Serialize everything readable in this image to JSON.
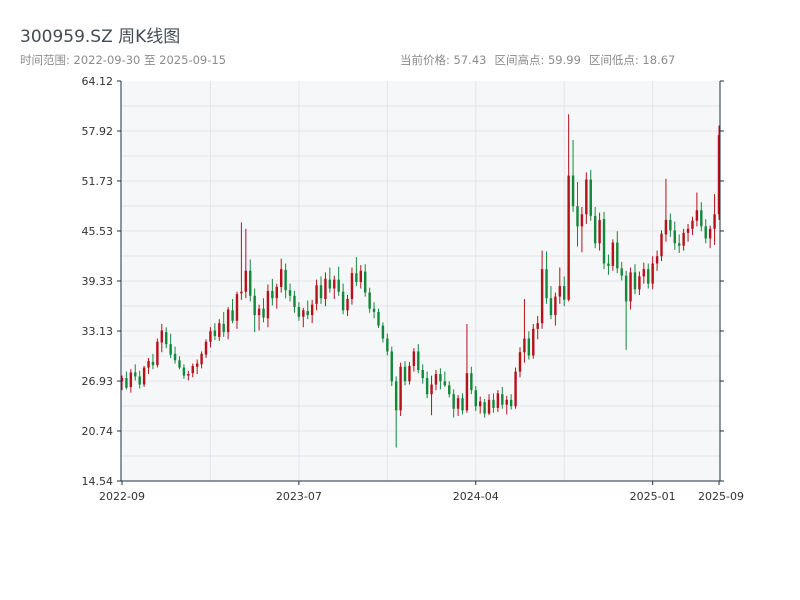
{
  "header": {
    "title": "300959.SZ 周K线图",
    "range_label": "时间范围: 2022-09-30 至 2025-09-15",
    "current_price_label": "当前价格: 57.43",
    "high_label": "区间高点: 59.99",
    "low_label": "区间低点: 18.67"
  },
  "chart_data": {
    "type": "candlestick",
    "ylim": [
      14.54,
      64.12
    ],
    "y_ticks": [
      14.54,
      20.74,
      26.93,
      33.13,
      39.33,
      45.53,
      51.73,
      57.92,
      64.12
    ],
    "y_tick_labels": [
      "14.54",
      "20.74",
      "26.93",
      "33.13",
      "39.33",
      "45.53",
      "51.73",
      "57.92",
      "64.12"
    ],
    "x_tick_labels": [
      "2022-09",
      "2023-07",
      "2024-04",
      "2025-01",
      "2025-09"
    ],
    "grid": true,
    "colors": {
      "up": "#b5121b",
      "down": "#14883a",
      "grid": "#e3e6ea",
      "plot_bg": "#f6f7f9",
      "axis": "#222f3e"
    },
    "ohlc": [
      [
        26.9,
        27.6,
        25.8,
        27.3
      ],
      [
        27.3,
        28.1,
        25.9,
        26.1
      ],
      [
        26.2,
        28.4,
        25.5,
        28.0
      ],
      [
        28.0,
        29.0,
        27.0,
        27.5
      ],
      [
        27.5,
        28.2,
        26.0,
        26.5
      ],
      [
        26.5,
        28.8,
        26.2,
        28.6
      ],
      [
        28.6,
        29.8,
        27.8,
        29.4
      ],
      [
        29.3,
        30.3,
        28.4,
        28.9
      ],
      [
        28.9,
        32.2,
        28.6,
        31.8
      ],
      [
        31.7,
        34.0,
        30.5,
        33.2
      ],
      [
        33.0,
        33.6,
        31.0,
        31.5
      ],
      [
        31.5,
        32.8,
        29.8,
        30.2
      ],
      [
        30.3,
        31.2,
        29.1,
        29.5
      ],
      [
        29.5,
        30.0,
        28.4,
        28.6
      ],
      [
        28.6,
        29.0,
        27.2,
        27.6
      ],
      [
        27.6,
        28.2,
        27.0,
        27.8
      ],
      [
        27.9,
        29.1,
        27.4,
        28.8
      ],
      [
        28.7,
        29.6,
        27.8,
        29.1
      ],
      [
        29.0,
        30.6,
        28.5,
        30.3
      ],
      [
        30.2,
        32.1,
        29.8,
        31.8
      ],
      [
        31.8,
        33.6,
        31.1,
        33.1
      ],
      [
        33.2,
        34.1,
        32.0,
        32.5
      ],
      [
        32.4,
        34.6,
        31.9,
        34.1
      ],
      [
        34.0,
        35.5,
        32.4,
        33.0
      ],
      [
        33.0,
        36.1,
        32.1,
        35.8
      ],
      [
        35.7,
        37.1,
        34.1,
        34.4
      ],
      [
        34.4,
        38.0,
        33.4,
        37.7
      ],
      [
        37.8,
        46.6,
        37.0,
        38.0
      ],
      [
        38.0,
        45.8,
        37.2,
        40.6
      ],
      [
        40.6,
        42.0,
        36.8,
        37.5
      ],
      [
        37.5,
        38.4,
        33.0,
        35.1
      ],
      [
        35.1,
        36.4,
        33.2,
        35.9
      ],
      [
        35.9,
        37.2,
        34.2,
        34.8
      ],
      [
        34.7,
        38.9,
        33.6,
        38.1
      ],
      [
        38.1,
        39.6,
        36.3,
        37.2
      ],
      [
        37.2,
        39.0,
        35.9,
        38.6
      ],
      [
        38.6,
        42.1,
        37.9,
        40.8
      ],
      [
        40.7,
        41.5,
        37.2,
        38.2
      ],
      [
        38.2,
        39.0,
        36.8,
        37.5
      ],
      [
        37.5,
        38.1,
        35.4,
        36.1
      ],
      [
        36.1,
        36.7,
        34.4,
        34.9
      ],
      [
        34.9,
        36.0,
        33.6,
        35.7
      ],
      [
        35.6,
        36.9,
        34.6,
        35.1
      ],
      [
        35.1,
        37.0,
        34.1,
        36.4
      ],
      [
        36.5,
        39.5,
        35.7,
        38.8
      ],
      [
        38.8,
        39.9,
        36.5,
        37.2
      ],
      [
        37.1,
        40.4,
        36.2,
        39.6
      ],
      [
        39.5,
        41.0,
        37.9,
        38.4
      ],
      [
        38.4,
        40.0,
        37.1,
        39.5
      ],
      [
        39.5,
        41.1,
        37.5,
        38.0
      ],
      [
        38.0,
        39.0,
        35.2,
        35.7
      ],
      [
        35.7,
        37.6,
        35.0,
        37.1
      ],
      [
        37.1,
        41.0,
        36.4,
        40.3
      ],
      [
        40.3,
        42.3,
        38.7,
        39.2
      ],
      [
        39.2,
        41.3,
        38.4,
        40.6
      ],
      [
        40.5,
        41.4,
        37.4,
        37.9
      ],
      [
        37.9,
        38.5,
        35.4,
        35.9
      ],
      [
        35.9,
        36.7,
        34.7,
        35.5
      ],
      [
        35.5,
        35.9,
        33.5,
        33.8
      ],
      [
        33.8,
        34.2,
        31.7,
        32.2
      ],
      [
        32.2,
        32.8,
        30.1,
        30.6
      ],
      [
        30.6,
        31.2,
        26.3,
        26.9
      ],
      [
        26.9,
        27.5,
        18.7,
        23.3
      ],
      [
        23.3,
        29.2,
        22.6,
        28.7
      ],
      [
        28.7,
        29.4,
        26.4,
        26.9
      ],
      [
        26.9,
        29.3,
        26.5,
        28.8
      ],
      [
        28.8,
        31.0,
        28.1,
        30.6
      ],
      [
        30.6,
        31.5,
        27.9,
        28.3
      ],
      [
        28.3,
        29.0,
        26.6,
        27.3
      ],
      [
        27.3,
        28.1,
        24.8,
        25.3
      ],
      [
        25.3,
        27.6,
        22.7,
        26.5
      ],
      [
        26.5,
        28.3,
        25.8,
        27.8
      ],
      [
        27.8,
        28.5,
        25.9,
        26.9
      ],
      [
        26.9,
        28.1,
        26.2,
        26.4
      ],
      [
        26.4,
        26.9,
        24.9,
        25.3
      ],
      [
        25.3,
        25.9,
        22.4,
        23.5
      ],
      [
        23.5,
        25.2,
        22.6,
        24.8
      ],
      [
        24.8,
        25.4,
        22.8,
        23.3
      ],
      [
        23.3,
        34.0,
        23.0,
        27.9
      ],
      [
        27.9,
        28.7,
        25.3,
        25.8
      ],
      [
        25.8,
        26.3,
        23.2,
        23.8
      ],
      [
        23.8,
        25.0,
        22.9,
        24.4
      ],
      [
        24.3,
        24.7,
        22.4,
        22.9
      ],
      [
        22.9,
        25.3,
        22.7,
        24.6
      ],
      [
        24.6,
        25.4,
        23.0,
        23.6
      ],
      [
        23.6,
        25.8,
        23.1,
        25.4
      ],
      [
        25.3,
        26.2,
        23.5,
        24.0
      ],
      [
        24.0,
        25.1,
        22.8,
        24.6
      ],
      [
        24.6,
        25.3,
        23.4,
        23.8
      ],
      [
        23.8,
        28.6,
        23.5,
        28.1
      ],
      [
        28.1,
        31.1,
        27.4,
        30.5
      ],
      [
        30.5,
        37.1,
        29.2,
        32.2
      ],
      [
        32.2,
        33.1,
        29.6,
        30.1
      ],
      [
        30.1,
        34.0,
        29.7,
        33.4
      ],
      [
        33.4,
        35.0,
        32.1,
        34.1
      ],
      [
        34.1,
        43.1,
        33.4,
        40.8
      ],
      [
        40.8,
        43.0,
        36.5,
        37.2
      ],
      [
        37.2,
        38.7,
        34.6,
        35.1
      ],
      [
        35.1,
        37.9,
        33.8,
        37.4
      ],
      [
        37.4,
        41.0,
        36.5,
        38.7
      ],
      [
        38.7,
        39.9,
        36.2,
        37.0
      ],
      [
        37.0,
        60.0,
        36.8,
        52.4
      ],
      [
        52.4,
        56.8,
        47.9,
        48.6
      ],
      [
        48.6,
        51.6,
        43.6,
        46.1
      ],
      [
        46.1,
        48.5,
        42.9,
        47.6
      ],
      [
        47.6,
        52.8,
        46.4,
        51.9
      ],
      [
        51.9,
        53.1,
        46.8,
        47.4
      ],
      [
        47.4,
        48.5,
        43.4,
        44.0
      ],
      [
        44.0,
        47.8,
        43.1,
        46.9
      ],
      [
        47.0,
        47.9,
        40.8,
        41.5
      ],
      [
        41.5,
        42.6,
        40.1,
        41.2
      ],
      [
        41.2,
        44.5,
        40.6,
        44.1
      ],
      [
        44.1,
        45.5,
        40.3,
        40.9
      ],
      [
        40.9,
        41.7,
        39.4,
        40.0
      ],
      [
        40.0,
        40.6,
        30.8,
        36.8
      ],
      [
        36.8,
        41.0,
        35.8,
        40.4
      ],
      [
        40.4,
        41.4,
        37.7,
        38.3
      ],
      [
        38.3,
        40.5,
        37.6,
        39.9
      ],
      [
        39.9,
        41.6,
        39.0,
        40.8
      ],
      [
        40.8,
        41.5,
        38.4,
        39.0
      ],
      [
        39.0,
        42.4,
        38.3,
        41.5
      ],
      [
        41.5,
        43.1,
        40.6,
        42.4
      ],
      [
        42.4,
        45.6,
        41.8,
        45.2
      ],
      [
        45.1,
        52.0,
        44.2,
        46.9
      ],
      [
        46.9,
        47.7,
        44.8,
        45.6
      ],
      [
        45.6,
        46.7,
        43.2,
        44.0
      ],
      [
        44.0,
        45.1,
        42.8,
        43.7
      ],
      [
        43.7,
        45.8,
        43.1,
        45.3
      ],
      [
        45.3,
        46.4,
        44.2,
        45.8
      ],
      [
        45.8,
        47.3,
        45.0,
        46.8
      ],
      [
        46.8,
        50.3,
        46.1,
        48.1
      ],
      [
        48.1,
        49.1,
        45.5,
        46.1
      ],
      [
        46.1,
        47.0,
        44.0,
        44.6
      ],
      [
        44.6,
        46.2,
        43.4,
        45.8
      ],
      [
        45.8,
        50.1,
        43.8,
        47.6
      ],
      [
        47.6,
        58.6,
        46.9,
        57.4
      ]
    ]
  }
}
